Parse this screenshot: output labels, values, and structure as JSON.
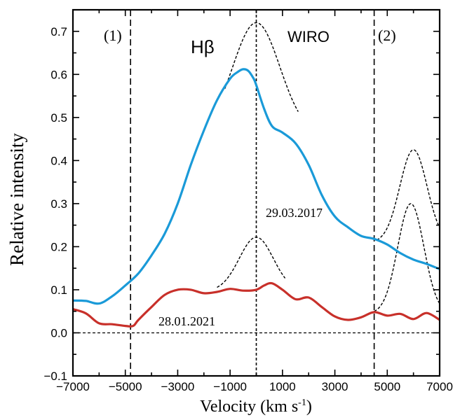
{
  "chart_data": {
    "type": "line",
    "title": "",
    "xlabel": "Velocity (km s",
    "xlabel_sup": "-1",
    "xlabel_close": ")",
    "ylabel": "Relative  intensity",
    "xlim": [
      -7000,
      7000
    ],
    "ylim": [
      -0.1,
      0.75
    ],
    "x_ticks": [
      -7000,
      -5000,
      -3000,
      -1000,
      1000,
      3000,
      5000,
      7000
    ],
    "x_tick_labels": [
      "−7000",
      "−5000",
      "−3000",
      "−1000",
      "1000",
      "3000",
      "5000",
      "7000"
    ],
    "y_ticks": [
      -0.1,
      0.0,
      0.1,
      0.2,
      0.3,
      0.4,
      0.5,
      0.6,
      0.7
    ],
    "y_tick_labels": [
      "−0.1",
      "0.0",
      "0.1",
      "0.2",
      "0.3",
      "0.4",
      "0.5",
      "0.6",
      "0.7"
    ],
    "grid": false,
    "colors": {
      "series_2017": "#1a9ad8",
      "series_2021": "#c8302a",
      "reference": "#000000"
    },
    "annotations": {
      "label_1": "(1)",
      "label_2": "(2)",
      "line": "Hβ",
      "instrument": "WIRO",
      "date_2017": "29.03.2017",
      "date_2021": "28.01.2021"
    },
    "vertical_lines": [
      -4800,
      0,
      4500
    ],
    "horizontal_line": 0.0,
    "series": [
      {
        "label": "29.03.2017",
        "x": [
          -7000,
          -6500,
          -6000,
          -5500,
          -5000,
          -4500,
          -4000,
          -3500,
          -3000,
          -2500,
          -2000,
          -1500,
          -1000,
          -700,
          -500,
          -300,
          -100,
          0,
          300,
          600,
          1000,
          1500,
          2000,
          2500,
          3000,
          3500,
          4000,
          4500,
          5000,
          5500,
          6000,
          6500,
          7000
        ],
        "y": [
          0.075,
          0.074,
          0.068,
          0.085,
          0.11,
          0.138,
          0.18,
          0.23,
          0.3,
          0.39,
          0.47,
          0.54,
          0.59,
          0.606,
          0.612,
          0.608,
          0.59,
          0.575,
          0.52,
          0.48,
          0.465,
          0.44,
          0.39,
          0.32,
          0.27,
          0.245,
          0.225,
          0.218,
          0.205,
          0.185,
          0.17,
          0.16,
          0.148
        ]
      },
      {
        "label": "28.01.2021",
        "x": [
          -7000,
          -6500,
          -6000,
          -5500,
          -5000,
          -4700,
          -4500,
          -4000,
          -3500,
          -3000,
          -2500,
          -2000,
          -1500,
          -1000,
          -500,
          0,
          300,
          600,
          1000,
          1500,
          2000,
          2500,
          3000,
          3500,
          4000,
          4500,
          5000,
          5500,
          6000,
          6500,
          7000
        ],
        "y": [
          0.055,
          0.045,
          0.022,
          0.02,
          0.016,
          0.016,
          0.03,
          0.06,
          0.088,
          0.1,
          0.1,
          0.092,
          0.095,
          0.102,
          0.098,
          0.1,
          0.11,
          0.115,
          0.1,
          0.078,
          0.082,
          0.06,
          0.038,
          0.03,
          0.036,
          0.048,
          0.04,
          0.044,
          0.032,
          0.046,
          0.03
        ]
      }
    ],
    "gaussian_fits": [
      {
        "center": 0,
        "amplitude": 0.26,
        "sigma": 900,
        "base": 0.46,
        "x_range": [
          -1200,
          1600
        ]
      },
      {
        "center": 0,
        "amplitude": 0.125,
        "sigma": 650,
        "base": 0.097,
        "x_range": [
          -1500,
          1100
        ]
      },
      {
        "center": 6000,
        "amplitude": 0.215,
        "sigma": 520,
        "base": 0.21,
        "x_range": [
          4600,
          7000
        ]
      },
      {
        "center": 5900,
        "amplitude": 0.255,
        "sigma": 500,
        "base": 0.045,
        "x_range": [
          4500,
          7000
        ]
      }
    ]
  }
}
